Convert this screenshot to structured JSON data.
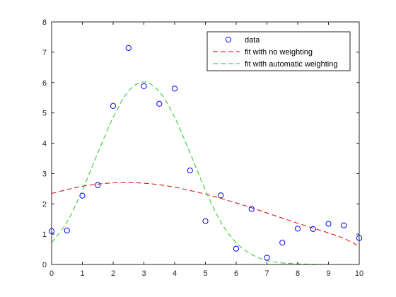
{
  "chart_data": {
    "type": "scatter",
    "title": "",
    "xlabel": "",
    "ylabel": "",
    "xlim": [
      0,
      10
    ],
    "ylim": [
      0,
      8
    ],
    "xticks": [
      0,
      1,
      2,
      3,
      4,
      5,
      6,
      7,
      8,
      9,
      10
    ],
    "yticks": [
      0,
      1,
      2,
      3,
      4,
      5,
      6,
      7,
      8
    ],
    "grid": false,
    "legend_position": "top-right",
    "series": [
      {
        "name": "data",
        "kind": "markers",
        "marker": "circle",
        "color": "#0000ff",
        "x": [
          0,
          0.5,
          1,
          1.5,
          2,
          2.5,
          3,
          3.5,
          4,
          4.5,
          5,
          5.5,
          6,
          6.5,
          7,
          7.5,
          8,
          8.5,
          9,
          9.5,
          10
        ],
        "y": [
          1.1,
          1.12,
          2.27,
          2.62,
          5.23,
          7.14,
          5.88,
          5.3,
          5.8,
          3.1,
          1.43,
          2.28,
          0.52,
          1.83,
          0.22,
          0.72,
          1.18,
          1.17,
          1.34,
          1.29,
          0.87
        ]
      },
      {
        "name": "fit with no weighting",
        "kind": "line",
        "style": "dashed",
        "color": "#dd0000",
        "x": [
          0,
          0.5,
          1,
          1.5,
          2,
          2.5,
          3,
          3.5,
          4,
          4.5,
          5,
          5.5,
          6,
          6.5,
          7,
          7.5,
          8,
          8.5,
          9,
          9.5,
          10
        ],
        "y": [
          2.34,
          2.47,
          2.58,
          2.65,
          2.69,
          2.7,
          2.68,
          2.63,
          2.55,
          2.44,
          2.32,
          2.18,
          2.03,
          1.87,
          1.7,
          1.53,
          1.36,
          1.2,
          1.04,
          0.86,
          0.6
        ]
      },
      {
        "name": "fit with automatic weighting",
        "kind": "line",
        "style": "dashed",
        "color": "#22cc22",
        "x": [
          0,
          0.5,
          1,
          1.5,
          2,
          2.5,
          3,
          3.5,
          4,
          4.5,
          5,
          5.5,
          6,
          6.5,
          7,
          7.5,
          8,
          8.5,
          9,
          9.5,
          10
        ],
        "y": [
          0.72,
          1.4,
          2.45,
          3.68,
          4.85,
          5.72,
          6.02,
          5.7,
          4.85,
          3.68,
          2.45,
          1.4,
          0.72,
          0.33,
          0.13,
          0.05,
          0.02,
          0.01,
          0.0,
          0.0,
          0.0
        ]
      }
    ]
  }
}
